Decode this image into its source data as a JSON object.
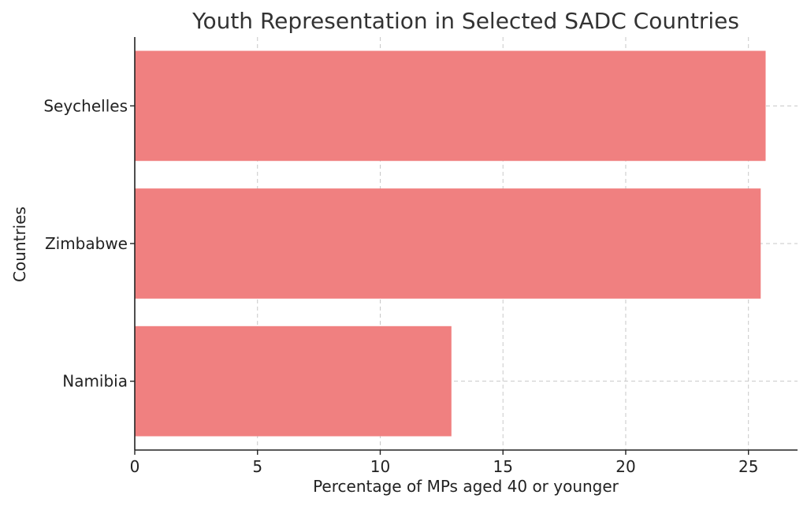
{
  "chart_data": {
    "type": "bar",
    "orientation": "horizontal",
    "title": "Youth Representation in Selected SADC Countries",
    "xlabel": "Percentage of MPs aged 40 or younger",
    "ylabel": "Countries",
    "categories": [
      "Namibia",
      "Zimbabwe",
      "Seychelles"
    ],
    "values": [
      12.9,
      25.5,
      25.7
    ],
    "xlim": [
      0,
      27
    ],
    "xticks": [
      0,
      5,
      10,
      15,
      20,
      25
    ],
    "xtick_labels": [
      "0",
      "5",
      "10",
      "15",
      "20",
      "25"
    ],
    "grid": true,
    "bar_color": "#f08080",
    "legend": "none"
  }
}
